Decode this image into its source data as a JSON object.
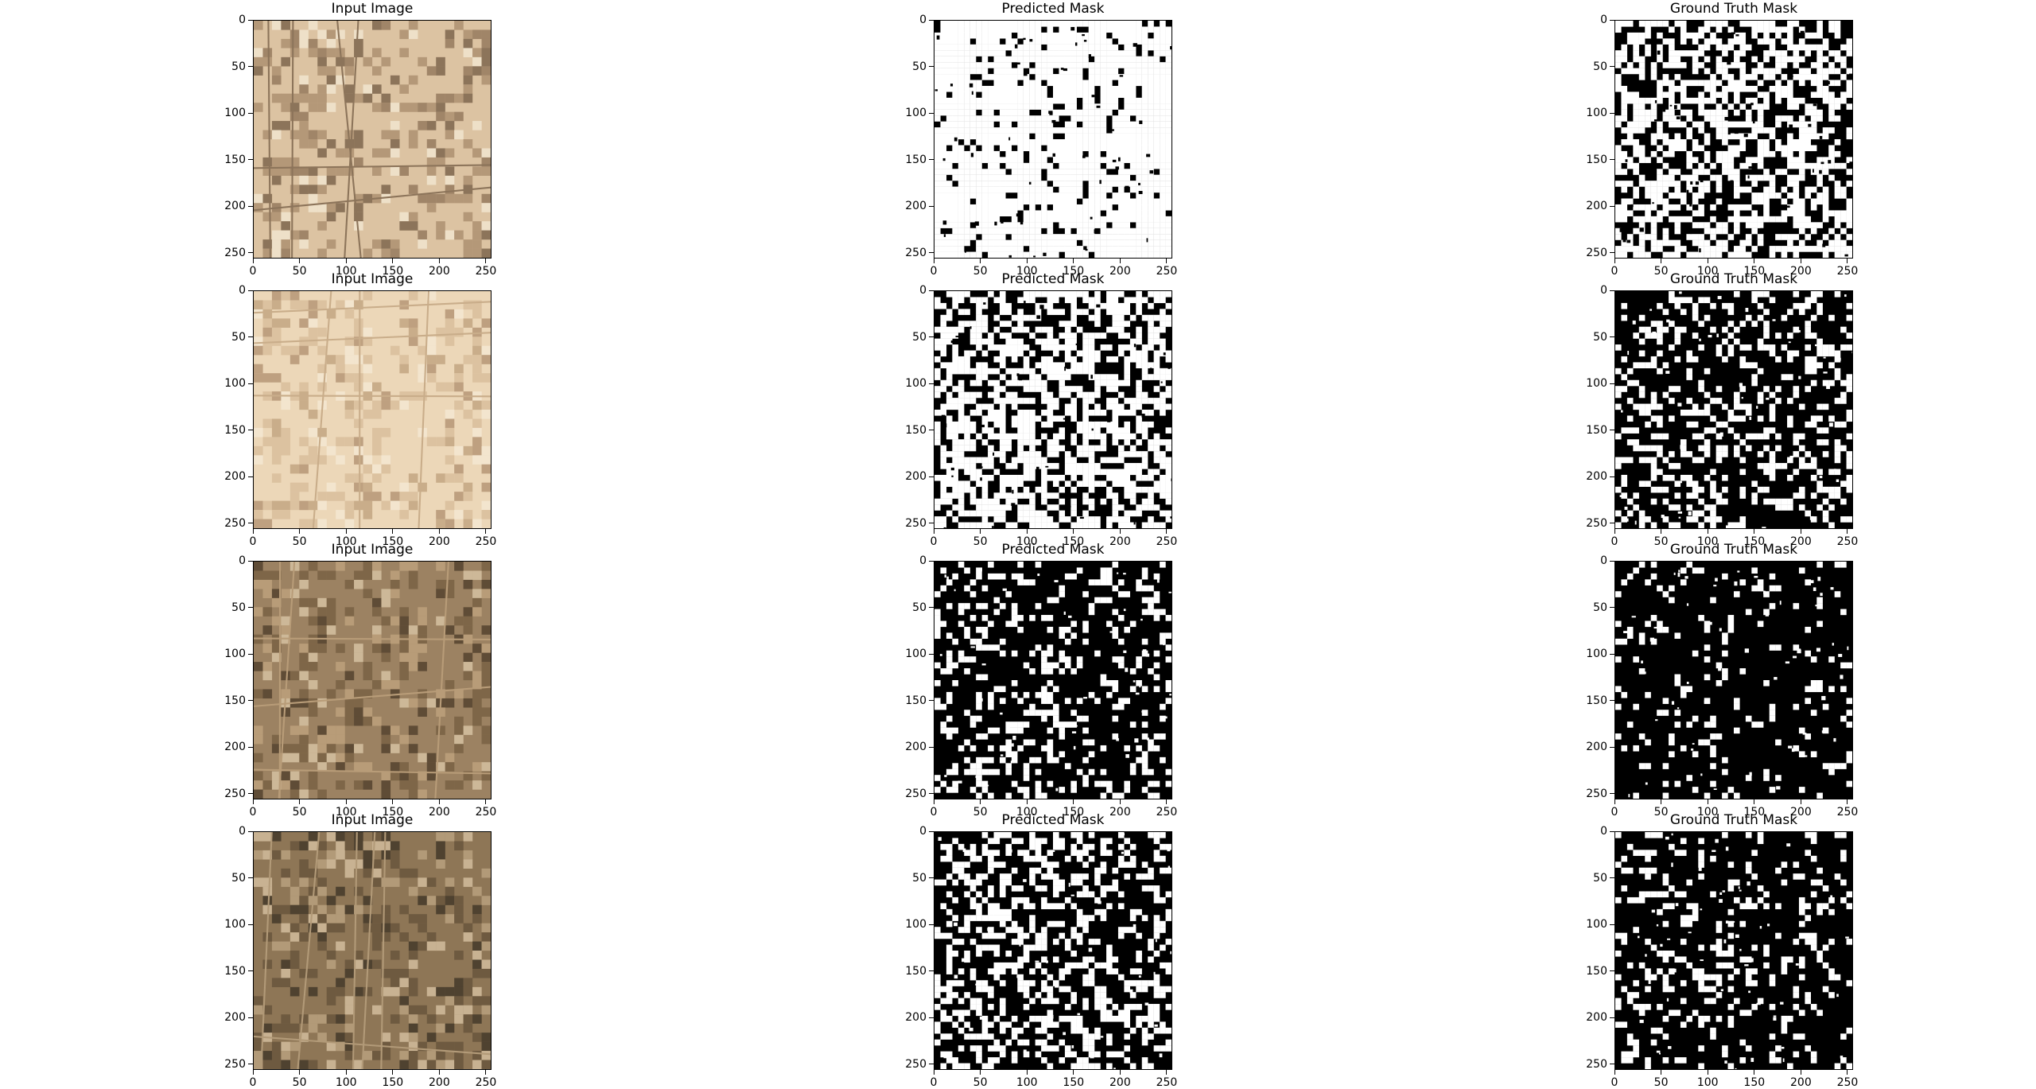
{
  "figure": {
    "rows": [
      {
        "panels": [
          {
            "title": "Input Image",
            "kind": "satellite",
            "palette": [
              "#dcc3a2",
              "#b49878",
              "#8c745a",
              "#eee0c8",
              "#a08568"
            ]
          },
          {
            "title": "Predicted Mask",
            "kind": "mask",
            "coverage": 0.9
          },
          {
            "title": "Ground Truth Mask",
            "kind": "mask",
            "coverage": 0.55
          }
        ]
      },
      {
        "panels": [
          {
            "title": "Input Image",
            "kind": "satellite",
            "palette": [
              "#ecd7b8",
              "#dcc2a0",
              "#c9ad8a",
              "#f3e5ce",
              "#bea080"
            ]
          },
          {
            "title": "Predicted Mask",
            "kind": "mask",
            "coverage": 0.6
          },
          {
            "title": "Ground Truth Mask",
            "kind": "mask",
            "coverage": 0.3
          }
        ]
      },
      {
        "panels": [
          {
            "title": "Input Image",
            "kind": "satellite",
            "palette": [
              "#9c8262",
              "#7e6648",
              "#b89c78",
              "#5f4c36",
              "#cdb898"
            ]
          },
          {
            "title": "Predicted Mask",
            "kind": "mask",
            "coverage": 0.25
          },
          {
            "title": "Ground Truth Mask",
            "kind": "mask",
            "coverage": 0.12
          }
        ]
      },
      {
        "panels": [
          {
            "title": "Input Image",
            "kind": "satellite",
            "palette": [
              "#8e7656",
              "#6e5a40",
              "#b29a78",
              "#4f4230",
              "#c8b292"
            ]
          },
          {
            "title": "Predicted Mask",
            "kind": "mask",
            "coverage": 0.4
          },
          {
            "title": "Ground Truth Mask",
            "kind": "mask",
            "coverage": 0.2
          }
        ]
      }
    ],
    "axes": {
      "x_ticks": [
        "0",
        "50",
        "100",
        "150",
        "200",
        "250"
      ],
      "y_ticks": [
        "0",
        "50",
        "100",
        "150",
        "200",
        "250"
      ],
      "range": [
        0,
        256
      ]
    }
  }
}
